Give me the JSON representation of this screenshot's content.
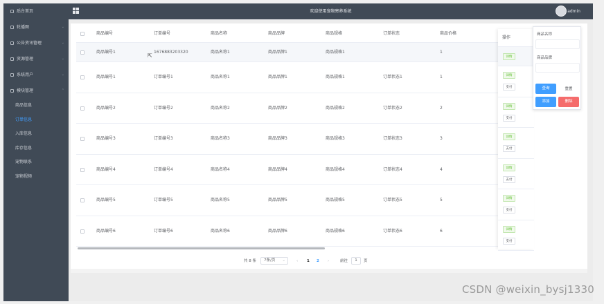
{
  "sidebar": {
    "items": [
      {
        "label": "后台首页",
        "icon": "home-icon",
        "expandable": false
      },
      {
        "label": "轮播图",
        "icon": "image-icon",
        "expandable": true
      },
      {
        "label": "公告资讯管理",
        "icon": "document-icon",
        "expandable": true
      },
      {
        "label": "资源管理",
        "icon": "location-icon",
        "expandable": true
      },
      {
        "label": "系统用户",
        "icon": "user-icon",
        "expandable": true
      },
      {
        "label": "模块管理",
        "icon": "grid-icon",
        "expandable": true
      }
    ],
    "sub_items": [
      {
        "label": "商品信息",
        "active": false
      },
      {
        "label": "订单信息",
        "active": true
      },
      {
        "label": "入库信息",
        "active": false
      },
      {
        "label": "库存信息",
        "active": false
      },
      {
        "label": "宠物联系",
        "active": false
      },
      {
        "label": "宠物视频",
        "active": false
      }
    ]
  },
  "header": {
    "title": "欢迎使用宠物寄养系统",
    "user": "admin"
  },
  "table": {
    "columns": [
      "商品编号",
      "订单编号",
      "商品名称",
      "商品品牌",
      "商品规格",
      "订单状态",
      "商品价格",
      "操作"
    ],
    "rows": [
      {
        "product_no": "商品编号1",
        "order_no": "1676883203320",
        "name": "商品名称1",
        "brand": "商品品牌1",
        "spec": "商品规格1",
        "status": "",
        "price": "1"
      },
      {
        "product_no": "商品编号1",
        "order_no": "订单编号1",
        "name": "商品名称1",
        "brand": "商品品牌1",
        "spec": "商品规格1",
        "status": "订单状态1",
        "price": "1"
      },
      {
        "product_no": "商品编号2",
        "order_no": "订单编号2",
        "name": "商品名称2",
        "brand": "商品品牌2",
        "spec": "商品规格2",
        "status": "订单状态2",
        "price": "2"
      },
      {
        "product_no": "商品编号3",
        "order_no": "订单编号3",
        "name": "商品名称3",
        "brand": "商品品牌3",
        "spec": "商品规格3",
        "status": "订单状态3",
        "price": "3"
      },
      {
        "product_no": "商品编号4",
        "order_no": "订单编号4",
        "name": "商品名称4",
        "brand": "商品品牌4",
        "spec": "商品规格4",
        "status": "订单状态4",
        "price": "4"
      },
      {
        "product_no": "商品编号5",
        "order_no": "订单编号5",
        "name": "商品名称5",
        "brand": "商品品牌5",
        "spec": "商品规格5",
        "status": "订单状态5",
        "price": "5"
      },
      {
        "product_no": "商品编号6",
        "order_no": "订单编号6",
        "name": "商品名称6",
        "brand": "商品品牌6",
        "spec": "商品规格6",
        "status": "订单状态6",
        "price": "6"
      }
    ],
    "ops": {
      "detail": "详情",
      "pay": "支付"
    }
  },
  "pagination": {
    "total": "共 8 条",
    "page_size": "7条/页",
    "pages": [
      "1",
      "2"
    ],
    "current": "2",
    "goto_label": "前往",
    "goto_value": "1",
    "page_suffix": "页"
  },
  "search": {
    "field1_label": "商品名称",
    "field2_label": "商品品牌",
    "query": "查询",
    "reset": "重置",
    "add": "添加",
    "delete": "删除"
  },
  "watermark": "CSDN @weixin_bysj1330",
  "colors": {
    "sidebar_bg": "#404a56",
    "primary": "#409eff",
    "success": "#67c23a",
    "danger": "#f56c6c"
  }
}
